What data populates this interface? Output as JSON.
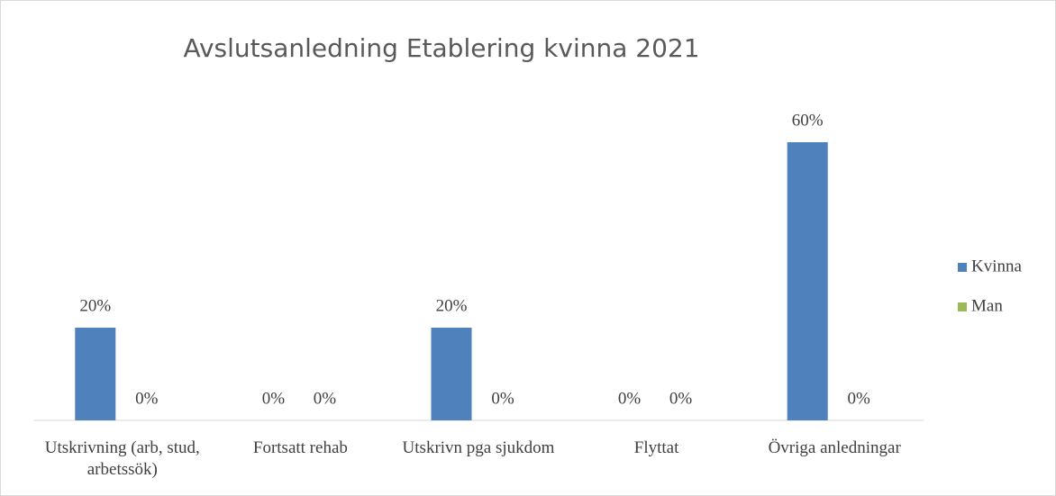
{
  "chart_data": {
    "type": "bar",
    "title": "Avslutsanledning Etablering kvinna 2021",
    "categories": [
      "Utskrivning (arb, stud, arbetssök)",
      "Fortsatt rehab",
      "Utskrivn pga sjukdom",
      "Flyttat",
      "Övriga anledningar"
    ],
    "series": [
      {
        "name": "Kvinna",
        "color": "#4f81bd",
        "values": [
          20,
          0,
          20,
          0,
          60
        ],
        "value_labels": [
          "20%",
          "0%",
          "20%",
          "0%",
          "60%"
        ]
      },
      {
        "name": "Man",
        "color": "#9bbb59",
        "values": [
          0,
          0,
          0,
          0,
          0
        ],
        "value_labels": [
          "0%",
          "0%",
          "0%",
          "0%",
          "0%"
        ]
      }
    ],
    "legend": "right"
  }
}
